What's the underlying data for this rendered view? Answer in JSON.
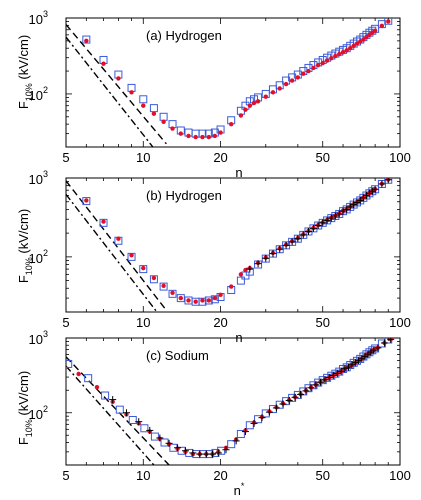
{
  "chart_data": [
    {
      "type": "scatter",
      "label": "(a)",
      "element": "Hydrogen",
      "ylabel_main": "F",
      "ylabel_sub": "10%",
      "ylabel_unit": " (kV/cm)",
      "xlabel": "n",
      "xlabel_sup": "",
      "xscale": "log",
      "yscale": "log",
      "xlim": [
        5,
        100
      ],
      "ylim": [
        20,
        1000
      ],
      "xticks": [
        5,
        10,
        20,
        50,
        100
      ],
      "yticks": [
        {
          "v": 100,
          "base": "10",
          "exp": "2"
        },
        {
          "v": 1000,
          "base": "10",
          "exp": "3"
        }
      ],
      "lines": [
        {
          "style": "dashed",
          "points": [
            [
              5,
              820
            ],
            [
              12.3,
              22
            ]
          ]
        },
        {
          "style": "dashdot",
          "points": [
            [
              5,
              560
            ],
            [
              10.9,
              20
            ]
          ]
        }
      ],
      "series": [
        {
          "marker": "open-square",
          "x": [
            6,
            7,
            8,
            9,
            10,
            11,
            12,
            13,
            14,
            15,
            16,
            17,
            18,
            19,
            20,
            22,
            24,
            25,
            26,
            27,
            28,
            30,
            32,
            34,
            36,
            38,
            40,
            42,
            44,
            46,
            48,
            50,
            52,
            54,
            56,
            58,
            60,
            62,
            64,
            66,
            68,
            70,
            72,
            74,
            76,
            78,
            80,
            85,
            90
          ],
          "y": [
            520,
            280,
            180,
            120,
            85,
            65,
            50,
            40,
            33,
            31,
            30,
            30,
            30,
            31,
            34,
            45,
            60,
            70,
            80,
            85,
            90,
            100,
            115,
            130,
            150,
            165,
            180,
            200,
            220,
            240,
            260,
            280,
            300,
            320,
            340,
            360,
            380,
            400,
            430,
            460,
            490,
            520,
            560,
            600,
            640,
            680,
            720,
            830,
            920
          ]
        },
        {
          "marker": "red-dot",
          "x": [
            6,
            7,
            8,
            9,
            10,
            11,
            12,
            13,
            14,
            15,
            16,
            17,
            18,
            19,
            20,
            22,
            24,
            25,
            26,
            27,
            28,
            30,
            32,
            34,
            36,
            38,
            40,
            42,
            44,
            46,
            48,
            50,
            52,
            54,
            56,
            58,
            60,
            62,
            64,
            66,
            68,
            70,
            72,
            74,
            76,
            78,
            80,
            85,
            90
          ],
          "y": [
            500,
            250,
            160,
            105,
            70,
            55,
            43,
            35,
            30,
            28,
            27,
            27,
            27,
            28,
            31,
            40,
            52,
            62,
            70,
            76,
            80,
            92,
            105,
            118,
            135,
            150,
            165,
            185,
            200,
            220,
            240,
            255,
            275,
            295,
            315,
            335,
            355,
            375,
            400,
            430,
            460,
            490,
            520,
            560,
            600,
            640,
            680,
            790,
            900
          ]
        }
      ]
    },
    {
      "type": "scatter",
      "label": "(b)",
      "element": "Hydrogen",
      "ylabel_main": "F",
      "ylabel_sub": "10%",
      "ylabel_unit": " (kV/cm)",
      "xlabel": "n",
      "xlabel_sup": "",
      "xscale": "log",
      "yscale": "log",
      "xlim": [
        5,
        100
      ],
      "ylim": [
        20,
        1000
      ],
      "xticks": [
        5,
        10,
        20,
        50,
        100
      ],
      "yticks": [
        {
          "v": 100,
          "base": "10",
          "exp": "2"
        },
        {
          "v": 1000,
          "base": "10",
          "exp": "3"
        }
      ],
      "lines": [
        {
          "style": "dashed",
          "points": [
            [
              5,
              920
            ],
            [
              12.3,
              21
            ]
          ]
        },
        {
          "style": "dashdot",
          "points": [
            [
              5,
              620
            ],
            [
              11.3,
              20
            ]
          ]
        }
      ],
      "series": [
        {
          "marker": "open-square",
          "x": [
            6,
            7,
            8,
            9,
            10,
            11,
            12,
            13,
            14,
            15,
            16,
            17,
            18,
            19,
            20,
            22,
            24,
            25,
            26,
            28,
            30,
            32,
            34,
            36,
            38,
            40,
            42,
            44,
            46,
            48,
            50,
            52,
            54,
            56,
            58,
            60,
            62,
            64,
            66,
            68,
            70,
            72,
            74,
            76,
            78,
            80,
            85,
            90
          ],
          "y": [
            510,
            270,
            160,
            100,
            70,
            52,
            42,
            34,
            30,
            28,
            27,
            27,
            28,
            29,
            31,
            38,
            50,
            58,
            65,
            80,
            95,
            110,
            125,
            140,
            155,
            170,
            190,
            210,
            230,
            250,
            270,
            290,
            310,
            330,
            350,
            380,
            400,
            430,
            460,
            490,
            520,
            560,
            600,
            640,
            680,
            720,
            840,
            950
          ]
        },
        {
          "marker": "red-dot",
          "x": [
            6,
            7,
            8,
            9,
            10,
            11,
            12,
            13,
            14,
            15,
            16,
            17,
            18,
            19,
            20,
            22,
            24,
            25,
            26,
            28,
            30,
            32,
            34,
            36,
            38,
            40,
            42,
            44,
            46,
            48,
            50,
            52,
            54,
            56,
            58,
            60,
            62,
            64,
            66,
            68,
            70,
            72,
            74,
            76,
            78,
            80,
            85,
            90
          ],
          "y": [
            520,
            280,
            170,
            105,
            72,
            54,
            43,
            35,
            30,
            28,
            27,
            28,
            28,
            30,
            33,
            42,
            60,
            68,
            72,
            84,
            98,
            112,
            128,
            143,
            158,
            173,
            193,
            213,
            233,
            253,
            273,
            293,
            313,
            333,
            355,
            385,
            405,
            435,
            465,
            495,
            525,
            565,
            605,
            645,
            685,
            725,
            845,
            955
          ]
        },
        {
          "marker": "plus",
          "x": [
            26,
            28,
            30,
            32,
            34,
            36,
            38,
            40,
            42,
            44,
            46,
            48,
            50,
            52,
            54,
            56,
            58,
            60,
            62,
            64,
            66,
            68,
            70,
            72,
            74,
            76,
            78,
            80,
            85,
            90
          ],
          "y": [
            70,
            82,
            96,
            110,
            125,
            140,
            155,
            170,
            190,
            210,
            230,
            250,
            270,
            290,
            310,
            330,
            350,
            380,
            400,
            430,
            460,
            490,
            520,
            560,
            600,
            640,
            680,
            720,
            840,
            950
          ]
        }
      ]
    },
    {
      "type": "scatter",
      "label": "(c)",
      "element": "Sodium",
      "ylabel_main": "F",
      "ylabel_sub": "10%",
      "ylabel_unit": " (kV/cm)",
      "xlabel": "n",
      "xlabel_sup": "*",
      "xscale": "log",
      "yscale": "log",
      "xlim": [
        5,
        100
      ],
      "ylim": [
        20,
        1000
      ],
      "xticks": [
        5,
        10,
        20,
        50,
        100
      ],
      "yticks": [
        {
          "v": 100,
          "base": "10",
          "exp": "2"
        },
        {
          "v": 1000,
          "base": "10",
          "exp": "3"
        }
      ],
      "lines": [
        {
          "style": "dashed",
          "points": [
            [
              5,
              560
            ],
            [
              12.6,
              20
            ]
          ]
        },
        {
          "style": "dashdot",
          "points": [
            [
              5,
              420
            ],
            [
              11.0,
              20
            ]
          ]
        }
      ],
      "series": [
        {
          "marker": "open-square",
          "x": [
            5.1,
            6.1,
            7.1,
            8.1,
            9.1,
            10.1,
            11.1,
            12.1,
            13.1,
            14.1,
            15.1,
            16.1,
            17.1,
            18.1,
            19.1,
            20.1,
            22,
            24,
            26,
            28,
            30,
            32,
            34,
            36,
            38,
            40,
            42,
            44,
            46,
            48,
            50,
            52,
            54,
            56,
            58,
            60,
            62,
            64,
            66,
            68,
            70,
            72,
            74,
            76,
            78,
            80,
            85,
            90
          ],
          "y": [
            450,
            290,
            170,
            110,
            80,
            62,
            48,
            40,
            34,
            31,
            29,
            28,
            28,
            28,
            29,
            31,
            38,
            52,
            68,
            82,
            98,
            112,
            128,
            143,
            158,
            173,
            193,
            213,
            233,
            253,
            273,
            293,
            313,
            333,
            355,
            385,
            405,
            435,
            465,
            495,
            525,
            565,
            605,
            645,
            685,
            725,
            845,
            955
          ]
        },
        {
          "marker": "red-dot",
          "x": [
            5.6,
            6.6,
            7.6,
            8.6,
            9.6,
            10.6,
            11.6,
            12.6,
            13.6,
            14.6,
            15.6,
            16.6,
            17.6,
            18.6,
            19.6,
            21,
            23,
            25,
            27,
            29,
            31,
            33,
            35,
            37,
            39,
            41,
            43,
            45,
            47,
            49,
            51,
            53,
            55,
            57,
            59,
            61,
            63,
            65,
            67,
            69,
            71,
            73,
            75,
            77,
            79,
            82,
            87,
            92
          ],
          "y": [
            330,
            220,
            140,
            95,
            72,
            56,
            45,
            38,
            33,
            30,
            28,
            28,
            28,
            28,
            30,
            34,
            44,
            58,
            74,
            88,
            104,
            118,
            133,
            148,
            163,
            178,
            198,
            218,
            238,
            258,
            278,
            298,
            318,
            338,
            360,
            390,
            410,
            440,
            470,
            500,
            530,
            570,
            610,
            650,
            690,
            740,
            860,
            960
          ]
        },
        {
          "marker": "plus",
          "x": [
            7.6,
            8.6,
            9.6,
            10.6,
            11.6,
            12.6,
            13.6,
            14.6,
            15.6,
            16.6,
            17.6,
            18.6,
            19.6,
            21,
            23,
            25,
            27,
            29,
            31,
            33,
            35,
            37,
            39,
            41,
            43,
            45,
            47,
            49,
            51,
            53,
            55,
            57,
            59,
            61,
            63,
            65,
            67,
            69,
            71,
            73,
            75,
            77,
            79,
            82,
            87,
            92
          ],
          "y": [
            150,
            100,
            76,
            58,
            46,
            39,
            34,
            31,
            29,
            28,
            28,
            28,
            29,
            32,
            42,
            56,
            72,
            86,
            102,
            116,
            131,
            146,
            161,
            176,
            196,
            216,
            236,
            256,
            276,
            296,
            316,
            336,
            358,
            388,
            408,
            438,
            468,
            498,
            528,
            568,
            608,
            648,
            688,
            738,
            858,
            958
          ]
        }
      ]
    }
  ]
}
